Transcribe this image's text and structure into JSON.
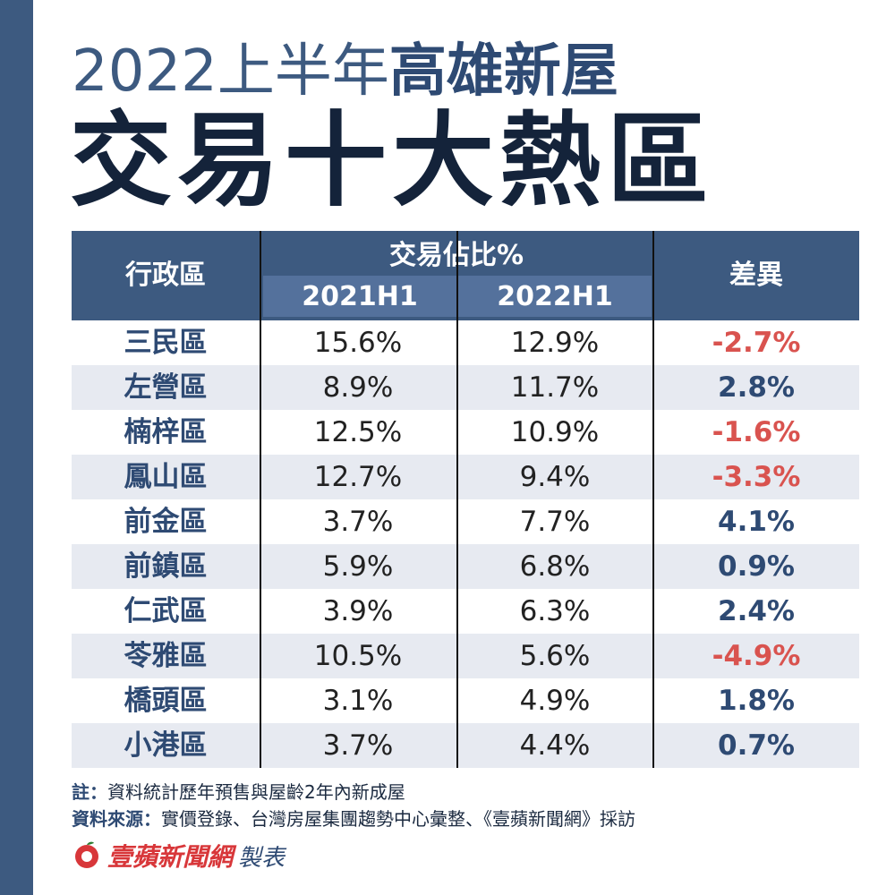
{
  "title": {
    "line1_light": "2022上半年",
    "line1_bold": "高雄新屋",
    "line2": "交易十大熱區"
  },
  "table": {
    "header": {
      "district": "行政區",
      "share": "交易佔比%",
      "year1": "2021H1",
      "year2": "2022H1",
      "diff": "差異"
    }
  },
  "chart_data": {
    "type": "table",
    "title": "2022上半年高雄新屋交易十大熱區",
    "columns": [
      "行政區",
      "2021H1",
      "2022H1",
      "差異"
    ],
    "column_group": "交易佔比%",
    "rows": [
      {
        "district": "三民區",
        "y2021h1": "15.6%",
        "y2022h1": "12.9%",
        "diff": "-2.7%"
      },
      {
        "district": "左營區",
        "y2021h1": "8.9%",
        "y2022h1": "11.7%",
        "diff": "2.8%"
      },
      {
        "district": "楠梓區",
        "y2021h1": "12.5%",
        "y2022h1": "10.9%",
        "diff": "-1.6%"
      },
      {
        "district": "鳳山區",
        "y2021h1": "12.7%",
        "y2022h1": "9.4%",
        "diff": "-3.3%"
      },
      {
        "district": "前金區",
        "y2021h1": "3.7%",
        "y2022h1": "7.7%",
        "diff": "4.1%"
      },
      {
        "district": "前鎮區",
        "y2021h1": "5.9%",
        "y2022h1": "6.8%",
        "diff": "0.9%"
      },
      {
        "district": "仁武區",
        "y2021h1": "3.9%",
        "y2022h1": "6.3%",
        "diff": "2.4%"
      },
      {
        "district": "苓雅區",
        "y2021h1": "10.5%",
        "y2022h1": "5.6%",
        "diff": "-4.9%"
      },
      {
        "district": "橋頭區",
        "y2021h1": "3.1%",
        "y2022h1": "4.9%",
        "diff": "1.8%"
      },
      {
        "district": "小港區",
        "y2021h1": "3.7%",
        "y2022h1": "4.4%",
        "diff": "0.7%"
      }
    ]
  },
  "notes": {
    "note_label": "註：",
    "note_text": "資料統計歷年預售與屋齡2年內新成屋",
    "source_label": "資料來源：",
    "source_text": "實價登錄、台灣房屋集團趨勢中心彙整、《壹蘋新聞網》採訪"
  },
  "brand": {
    "name": "壹蘋新聞網",
    "suffix": "製表"
  },
  "colors": {
    "accent": "#3d5a80",
    "negative": "#d9534f",
    "positive": "#2e4a73",
    "brand_red": "#d8373a"
  }
}
